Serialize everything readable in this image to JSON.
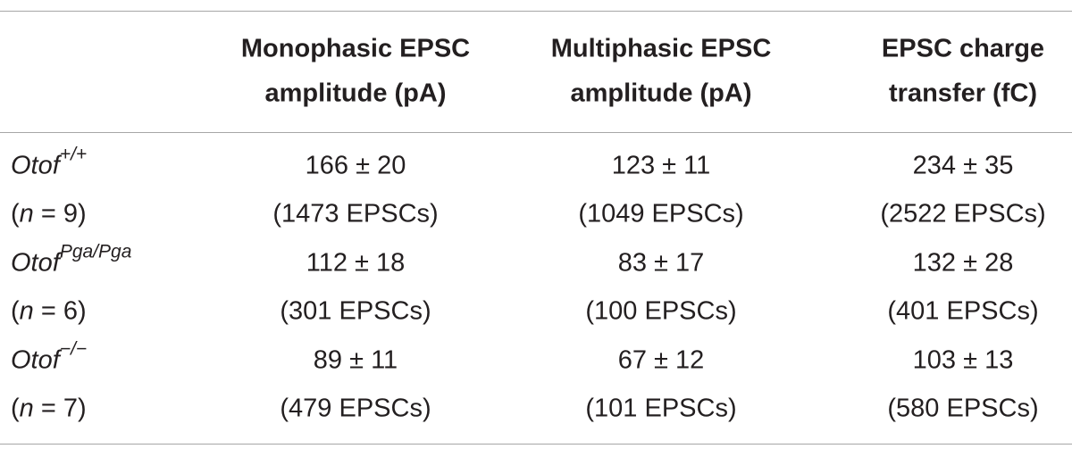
{
  "table": {
    "header": [
      [
        "Monophasic EPSC",
        "amplitude (pA)"
      ],
      [
        "Multiphasic EPSC",
        "amplitude (pA)"
      ],
      [
        "EPSC charge",
        "transfer (fC)"
      ]
    ],
    "rows": [
      {
        "genotype": {
          "base": "Otof",
          "sup": "+/+"
        },
        "n": {
          "open": "(",
          "italic": "n",
          "rest": " = 9)"
        },
        "cells": [
          {
            "value": "166 ± 20",
            "count": "(1473 EPSCs)"
          },
          {
            "value": "123 ± 11",
            "count": "(1049 EPSCs)"
          },
          {
            "value": "234 ± 35",
            "count": "(2522 EPSCs)"
          }
        ]
      },
      {
        "genotype": {
          "base": "Otof",
          "sup": "Pga/Pga"
        },
        "n": {
          "open": "(",
          "italic": "n",
          "rest": " = 6)"
        },
        "cells": [
          {
            "value": "112 ± 18",
            "count": "(301 EPSCs)"
          },
          {
            "value": "83 ± 17",
            "count": "(100 EPSCs)"
          },
          {
            "value": "132 ± 28",
            "count": "(401 EPSCs)"
          }
        ]
      },
      {
        "genotype": {
          "base": "Otof",
          "sup": "−/−"
        },
        "n": {
          "open": "(",
          "italic": "n",
          "rest": " = 7)"
        },
        "cells": [
          {
            "value": "89 ± 11",
            "count": "(479 EPSCs)"
          },
          {
            "value": "67 ± 12",
            "count": "(101 EPSCs)"
          },
          {
            "value": "103 ± 13",
            "count": "(580 EPSCs)"
          }
        ]
      }
    ]
  }
}
